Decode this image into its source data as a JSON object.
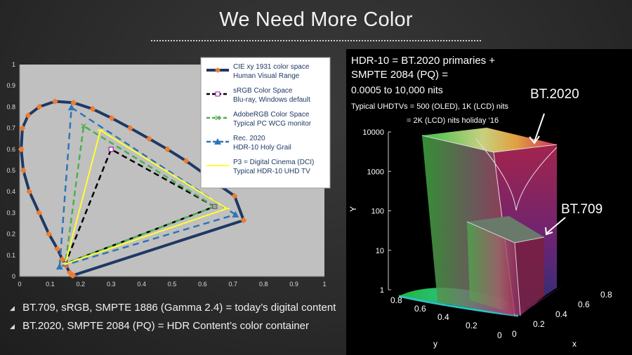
{
  "slide": {
    "title": "We Need More Color",
    "bullets": [
      "BT.709, sRGB, SMPTE 1886 (Gamma 2.4) = today’s digital content",
      "BT.2020, SMPTE 2084 (PQ) = HDR Content’s color container"
    ]
  },
  "right_panel": {
    "line1": "HDR-10 = BT.2020 primaries +",
    "line2": "SMPTE 2084 (PQ)  =",
    "line3": "0.0005 to 10,000 nits",
    "line4": "Typical UHDTVs = 500 (OLED), 1K (LCD) nits",
    "line5": "= 2K (LCD) nits holiday ‘16",
    "label_bt2020": "BT.2020",
    "label_bt709": "BT.709"
  },
  "chart_data": [
    {
      "type": "line",
      "title": "",
      "xlabel": "",
      "ylabel": "",
      "xlim": [
        0,
        1
      ],
      "ylim": [
        0,
        1
      ],
      "xticks": [
        "0",
        "0.1",
        "0.2",
        "0.3",
        "0.4",
        "0.5",
        "0.6",
        "0.7",
        "0.8",
        "0.9",
        "1"
      ],
      "yticks": [
        "0",
        "0.1",
        "0.2",
        "0.3",
        "0.4",
        "0.5",
        "0.6",
        "0.7",
        "0.8",
        "0.9",
        "1"
      ],
      "grid": false,
      "legend_position": "top-right",
      "colors": {
        "plot_bg": "#c0c0c0",
        "cie": "#1f3864",
        "cie_marker": "#ed7d31",
        "srgb": "#000000",
        "adobe": "#4caf50",
        "rec2020": "#2e75b6",
        "p3": "#ffff33"
      },
      "series": [
        {
          "name": "CIE xy 1931 color space",
          "subtitle": "Human Visual Range",
          "x": [
            0.175,
            0.174,
            0.172,
            0.169,
            0.165,
            0.16,
            0.152,
            0.14,
            0.124,
            0.096,
            0.064,
            0.032,
            0.012,
            0.005,
            0.009,
            0.028,
            0.064,
            0.116,
            0.177,
            0.24,
            0.302,
            0.363,
            0.425,
            0.485,
            0.546,
            0.605,
            0.66,
            0.705,
            0.735,
            0.175
          ],
          "y": [
            0.005,
            0.005,
            0.006,
            0.01,
            0.018,
            0.03,
            0.05,
            0.08,
            0.13,
            0.2,
            0.3,
            0.4,
            0.5,
            0.6,
            0.7,
            0.76,
            0.8,
            0.826,
            0.82,
            0.79,
            0.747,
            0.7,
            0.65,
            0.6,
            0.545,
            0.485,
            0.425,
            0.38,
            0.265,
            0.005
          ]
        },
        {
          "name": "sRGB Color Space",
          "subtitle": "Blu-ray, Windows default",
          "x": [
            0.64,
            0.3,
            0.15,
            0.64
          ],
          "y": [
            0.33,
            0.6,
            0.06,
            0.33
          ]
        },
        {
          "name": "AdobeRGB Color Space",
          "subtitle": "Typical PC WCG monitor",
          "x": [
            0.64,
            0.21,
            0.15,
            0.64
          ],
          "y": [
            0.33,
            0.71,
            0.06,
            0.33
          ]
        },
        {
          "name": "Rec. 2020",
          "subtitle": "HDR-10 Holy Grail",
          "x": [
            0.708,
            0.17,
            0.131,
            0.708
          ],
          "y": [
            0.292,
            0.797,
            0.046,
            0.292
          ]
        },
        {
          "name": "P3 = Digital Cinema (DCI)",
          "subtitle": "Typical HDR-10 UHD TV",
          "x": [
            0.68,
            0.265,
            0.15,
            0.68
          ],
          "y": [
            0.32,
            0.69,
            0.06,
            0.32
          ]
        }
      ]
    },
    {
      "type": "scatter",
      "title": "",
      "xlabel": "x",
      "ylabel": "y",
      "zlabel": "Y",
      "x_ticks": [
        "0",
        "0.2",
        "0.4",
        "0.6",
        "0.8"
      ],
      "y_ticks": [
        "0",
        "0.2",
        "0.4",
        "0.6",
        "0.8"
      ],
      "z_ticks": [
        "1",
        "10",
        "100",
        "1000",
        "10000"
      ],
      "z_scale": "log",
      "zlim": [
        1,
        10000
      ],
      "volumes": [
        {
          "name": "BT.2020"
        },
        {
          "name": "BT.709"
        }
      ]
    }
  ]
}
